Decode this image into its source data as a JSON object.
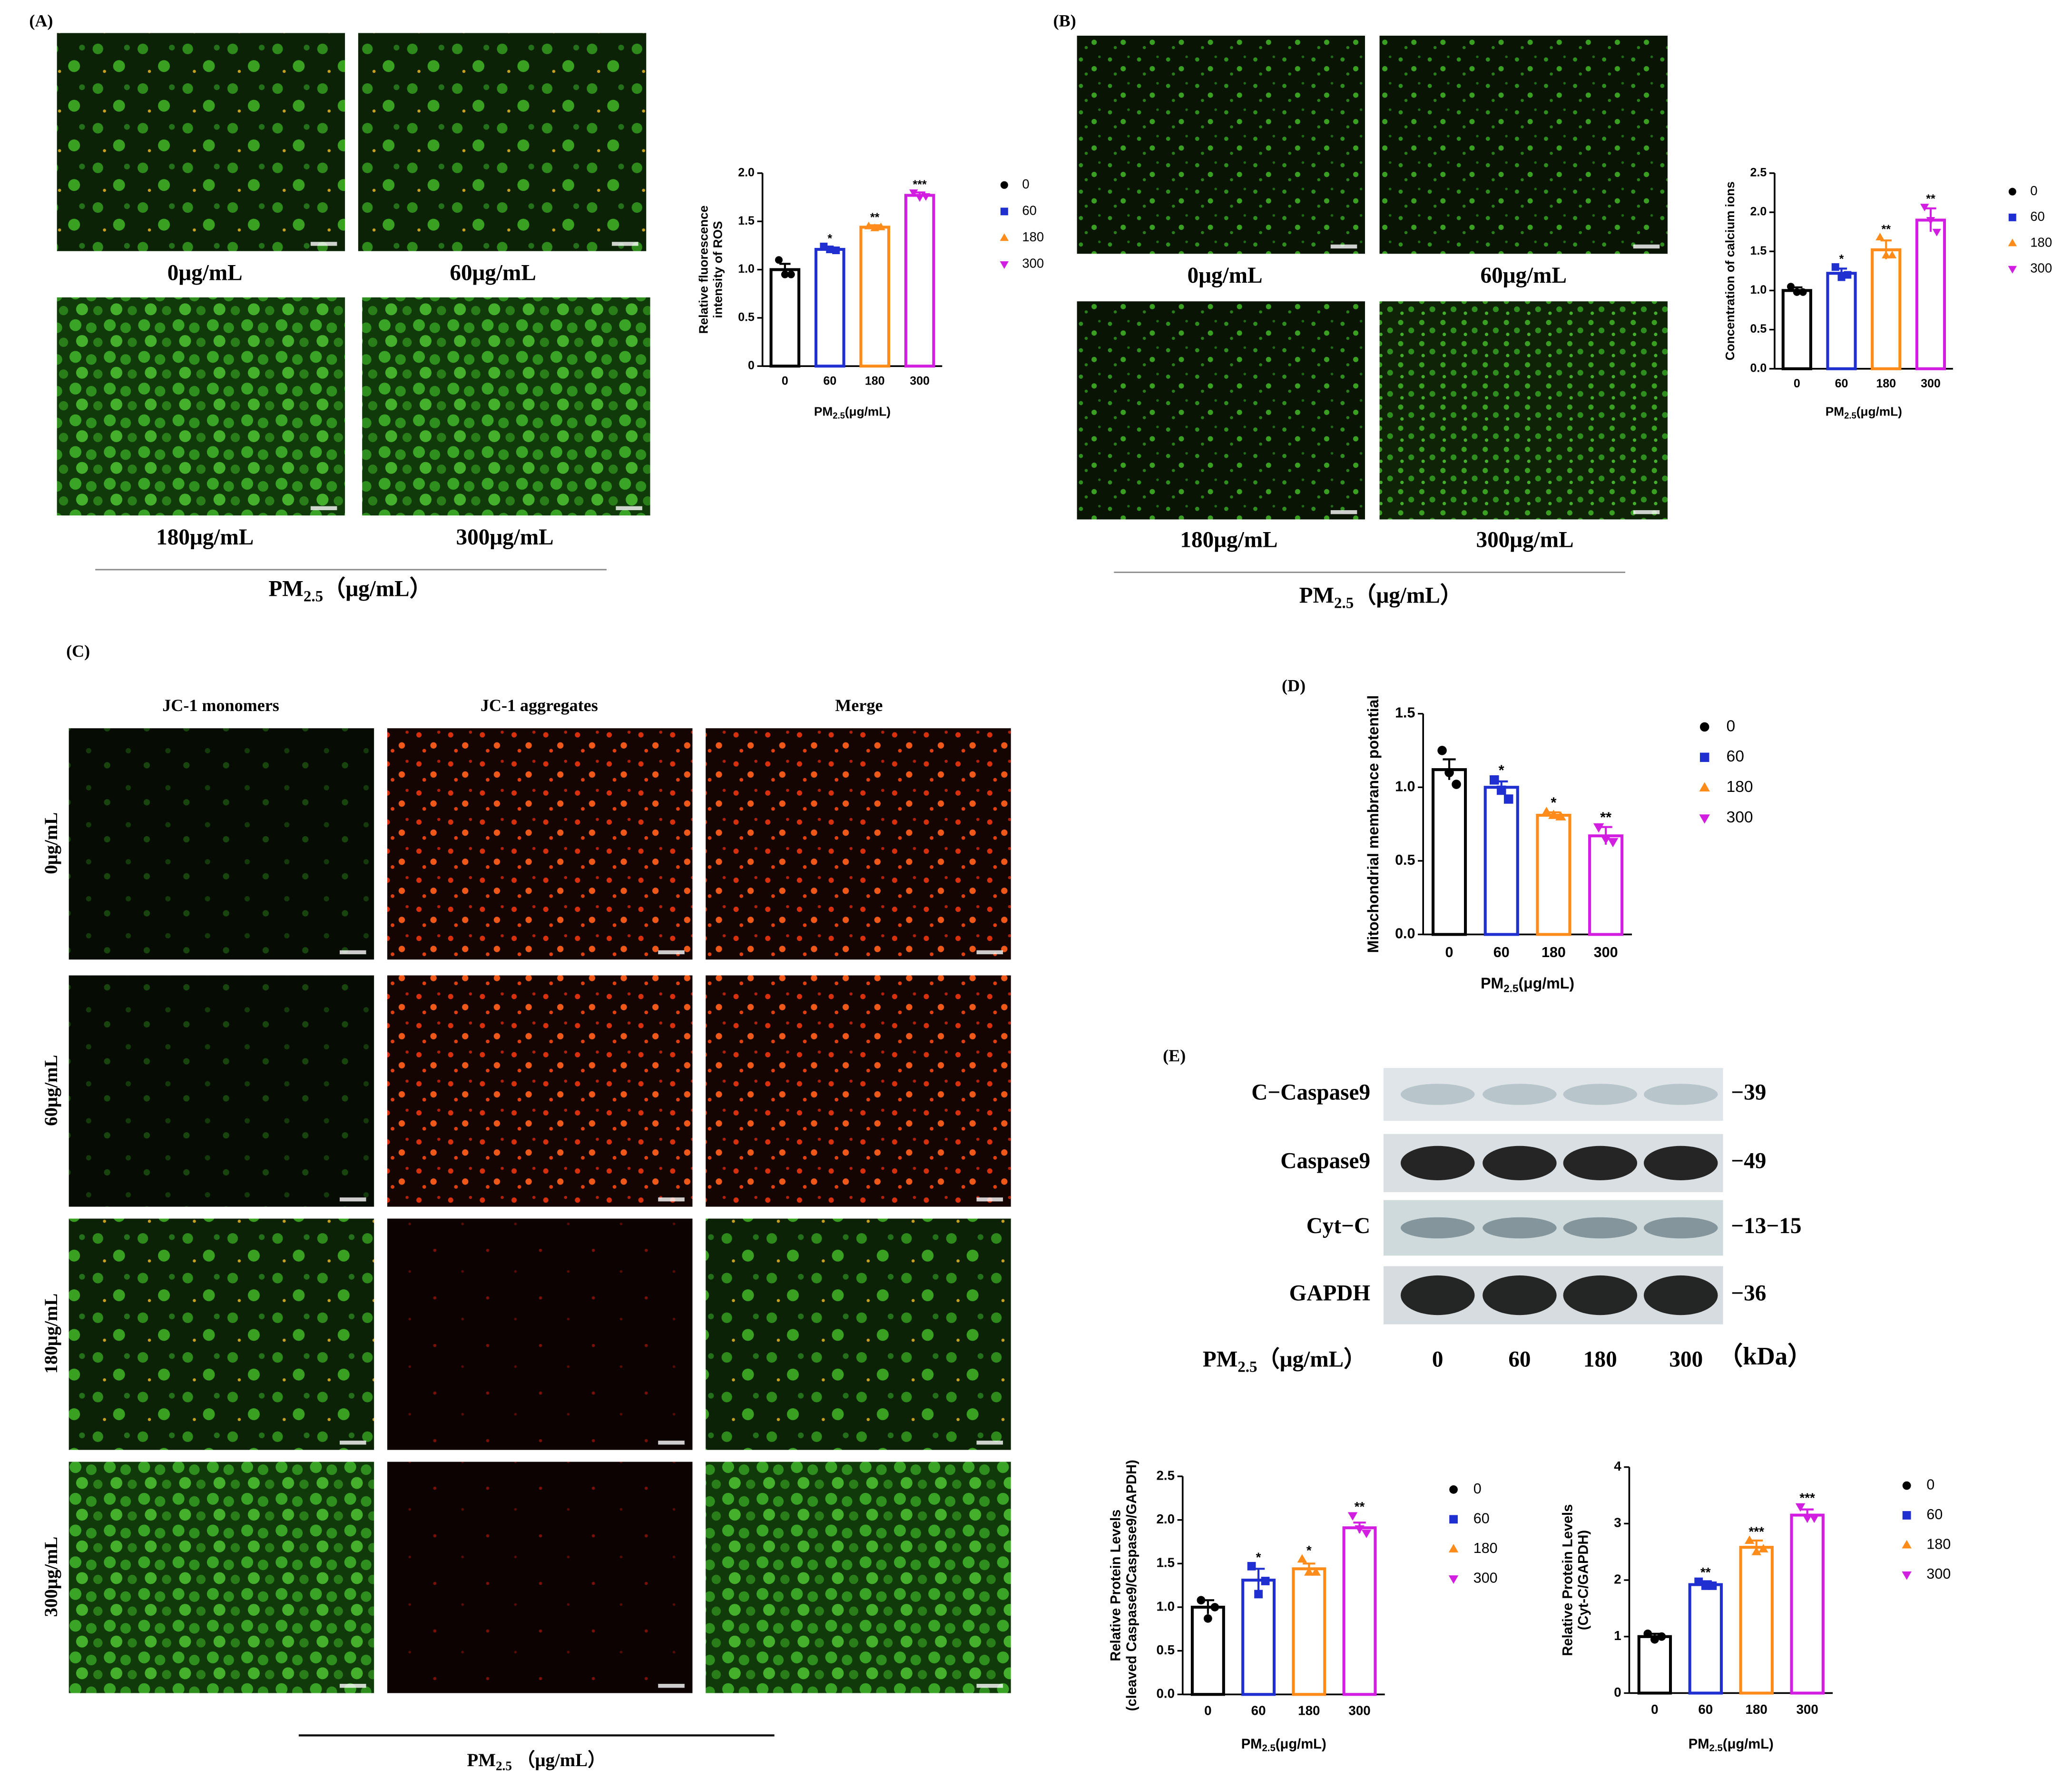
{
  "panels": {
    "A": {
      "label": "(A)",
      "images": [
        "0μg/mL",
        "60μg/mL",
        "180μg/mL",
        "300μg/mL"
      ],
      "axis": {
        "main": "PM",
        "sub": "2.5",
        "unit": "（μg/mL）"
      }
    },
    "B": {
      "label": "(B)",
      "images": [
        "0μg/mL",
        "60μg/mL",
        "180μg/mL",
        "300μg/mL"
      ],
      "axis": {
        "main": "PM",
        "sub": "2.5",
        "unit": "（μg/mL）"
      }
    },
    "C": {
      "label": "(C)",
      "columns": [
        "JC-1 monomers",
        "JC-1 aggregates",
        "Merge"
      ],
      "rows": [
        "0μg/mL",
        "60μg/mL",
        "180μg/mL",
        "300μg/mL"
      ],
      "axis": {
        "main": "PM",
        "sub": "2.5",
        "unit": " （μg/mL）"
      }
    },
    "D": {
      "label": "(D)"
    },
    "E": {
      "label": "(E)",
      "blot": {
        "proteins": [
          "C−Caspase9",
          "Caspase9",
          "Cyt−C",
          "GAPDH"
        ],
        "sizes": [
          "−39",
          "−49",
          "−13−15",
          "−36"
        ],
        "lanes": [
          "0",
          "60",
          "180",
          "300"
        ],
        "unit": "（kDa）",
        "axis": {
          "main": "PM",
          "sub": "2.5",
          "unit": "（μg/mL）"
        }
      }
    }
  },
  "chart_data": [
    {
      "type": "bar",
      "ylabel": [
        "Relative fluorescence",
        "intensity of ROS"
      ],
      "xlabel": {
        "main": "PM",
        "sub": "2.5",
        "unit": "(μg/mL)"
      },
      "categories": [
        "0",
        "60",
        "180",
        "300"
      ],
      "values": [
        1.0,
        1.21,
        1.44,
        1.77
      ],
      "errors": [
        0.06,
        0.02,
        0.02,
        0.03
      ],
      "points": [
        [
          1.1,
          0.95,
          0.95
        ],
        [
          1.24,
          1.21,
          1.2
        ],
        [
          1.45,
          1.43,
          1.44
        ],
        [
          1.8,
          1.75,
          1.76
        ]
      ],
      "significance": [
        null,
        "*",
        "**",
        "***"
      ],
      "colors": [
        "#000000",
        "#1f2fd0",
        "#ff8c1a",
        "#d21ee0"
      ],
      "markers": [
        "circle",
        "square",
        "triangle-up",
        "triangle-down"
      ],
      "ylim": [
        0,
        2
      ],
      "yticks": [
        0,
        0.5,
        {
          "value": 1,
          "label": "1.0"
        },
        1.5,
        {
          "value": 2,
          "label": "2.0"
        }
      ]
    },
    {
      "type": "bar",
      "ylabel": [
        "Concentration of calcium ions"
      ],
      "xlabel": {
        "main": "PM",
        "sub": "2.5",
        "unit": "(μg/mL)"
      },
      "categories": [
        "0",
        "60",
        "180",
        "300"
      ],
      "values": [
        1.0,
        1.22,
        1.52,
        1.9
      ],
      "errors": [
        0.04,
        0.06,
        0.12,
        0.15
      ],
      "points": [
        [
          1.05,
          0.98,
          0.98
        ],
        [
          1.3,
          1.17,
          1.2
        ],
        [
          1.68,
          1.45,
          1.45
        ],
        [
          2.07,
          1.9,
          1.75
        ]
      ],
      "significance": [
        null,
        "*",
        "**",
        "**"
      ],
      "colors": [
        "#000000",
        "#1f2fd0",
        "#ff8c1a",
        "#d21ee0"
      ],
      "markers": [
        "circle",
        "square",
        "triangle-up",
        "triangle-down"
      ],
      "ylim": [
        0,
        2.5
      ],
      "yticks": [
        {
          "value": 0,
          "label": "0.0"
        },
        0.5,
        {
          "value": 1,
          "label": "1.0"
        },
        1.5,
        {
          "value": 2,
          "label": "2.0"
        },
        2.5
      ]
    },
    {
      "type": "bar",
      "ylabel": [
        "Mitochondrial membrance potential"
      ],
      "xlabel": {
        "main": "PM",
        "sub": "2.5",
        "unit": "(μg/mL)"
      },
      "categories": [
        "0",
        "60",
        "180",
        "300"
      ],
      "values": [
        1.12,
        1.0,
        0.81,
        0.67
      ],
      "errors": [
        0.07,
        0.04,
        0.02,
        0.06
      ],
      "points": [
        [
          1.25,
          1.1,
          1.02
        ],
        [
          1.05,
          0.98,
          0.92
        ],
        [
          0.83,
          0.81,
          0.8
        ],
        [
          0.73,
          0.65,
          0.63
        ]
      ],
      "significance": [
        null,
        "*",
        "*",
        "**"
      ],
      "colors": [
        "#000000",
        "#1f2fd0",
        "#ff8c1a",
        "#d21ee0"
      ],
      "markers": [
        "circle",
        "square",
        "triangle-up",
        "triangle-down"
      ],
      "ylim": [
        0,
        1.5
      ],
      "yticks": [
        {
          "value": 0,
          "label": "0.0"
        },
        0.5,
        {
          "value": 1,
          "label": "1.0"
        },
        1.5
      ]
    },
    {
      "type": "bar",
      "ylabel": [
        "Relative Protein Levels",
        "(cleaved Caspase9/Caspase9/GAPDH)"
      ],
      "xlabel": {
        "main": "PM",
        "sub": "2.5",
        "unit": "(μg/mL)"
      },
      "categories": [
        "0",
        "60",
        "180",
        "300"
      ],
      "values": [
        1.0,
        1.31,
        1.44,
        1.91
      ],
      "errors": [
        0.08,
        0.13,
        0.06,
        0.06
      ],
      "points": [
        [
          1.08,
          0.87,
          1.0
        ],
        [
          1.47,
          1.15,
          1.3
        ],
        [
          1.55,
          1.4,
          1.4
        ],
        [
          2.05,
          1.9,
          1.85
        ]
      ],
      "significance": [
        null,
        "*",
        "*",
        "**"
      ],
      "colors": [
        "#000000",
        "#1f2fd0",
        "#ff8c1a",
        "#d21ee0"
      ],
      "markers": [
        "circle",
        "square",
        "triangle-up",
        "triangle-down"
      ],
      "ylim": [
        0,
        2.5
      ],
      "yticks": [
        {
          "value": 0,
          "label": "0.0"
        },
        0.5,
        {
          "value": 1,
          "label": "1.0"
        },
        1.5,
        {
          "value": 2,
          "label": "2.0"
        },
        2.5
      ]
    },
    {
      "type": "bar",
      "ylabel": [
        "Relative Protein Levels",
        "(Cyt-C/GAPDH)"
      ],
      "xlabel": {
        "main": "PM",
        "sub": "2.5",
        "unit": "(μg/mL)"
      },
      "categories": [
        "0",
        "60",
        "180",
        "300"
      ],
      "values": [
        1.0,
        1.92,
        2.58,
        3.15
      ],
      "errors": [
        0.05,
        0.06,
        0.12,
        0.1
      ],
      "points": [
        [
          1.05,
          0.95,
          1.0
        ],
        [
          1.97,
          1.9,
          1.9
        ],
        [
          2.7,
          2.5,
          2.55
        ],
        [
          3.3,
          3.1,
          3.1
        ]
      ],
      "significance": [
        null,
        "**",
        "***",
        "***"
      ],
      "colors": [
        "#000000",
        "#1f2fd0",
        "#ff8c1a",
        "#d21ee0"
      ],
      "markers": [
        "circle",
        "square",
        "triangle-up",
        "triangle-down"
      ],
      "ylim": [
        0,
        4
      ],
      "yticks": [
        0,
        1,
        2,
        3,
        4
      ]
    }
  ]
}
